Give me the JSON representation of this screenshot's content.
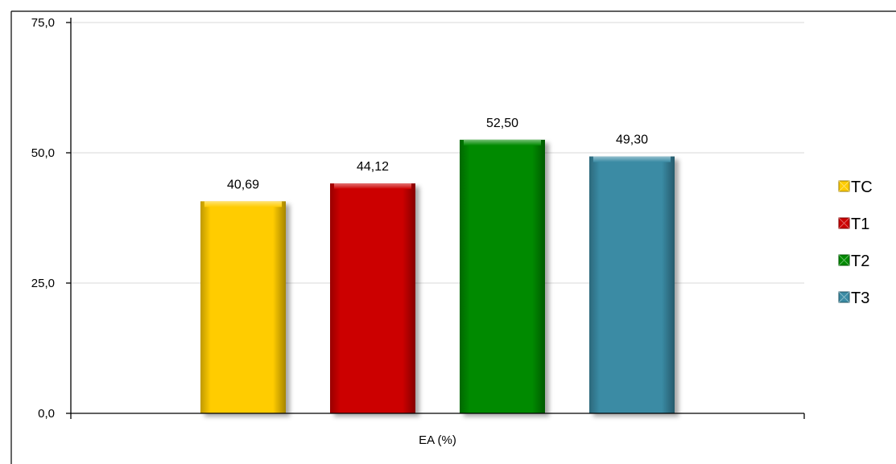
{
  "chart_data": {
    "type": "bar",
    "categories": [
      "EA (%)"
    ],
    "series": [
      {
        "name": "TC",
        "values": [
          40.69
        ],
        "label": "40,69",
        "color": "#FFCC00"
      },
      {
        "name": "T1",
        "values": [
          44.12
        ],
        "label": "44,12",
        "color": "#CC0000"
      },
      {
        "name": "T2",
        "values": [
          52.5
        ],
        "label": "52,50",
        "color": "#008A00"
      },
      {
        "name": "T3",
        "values": [
          49.3
        ],
        "label": "49,30",
        "color": "#3A8BA4"
      }
    ],
    "title": "",
    "xlabel": "EA (%)",
    "ylabel": "",
    "ylim": [
      0,
      75
    ],
    "yticks": [
      0,
      25,
      50,
      75
    ],
    "ytick_labels": [
      "0,0",
      "25,0",
      "50,0",
      "75,0"
    ],
    "grid": true,
    "legend_position": "right",
    "data_labels": true
  }
}
